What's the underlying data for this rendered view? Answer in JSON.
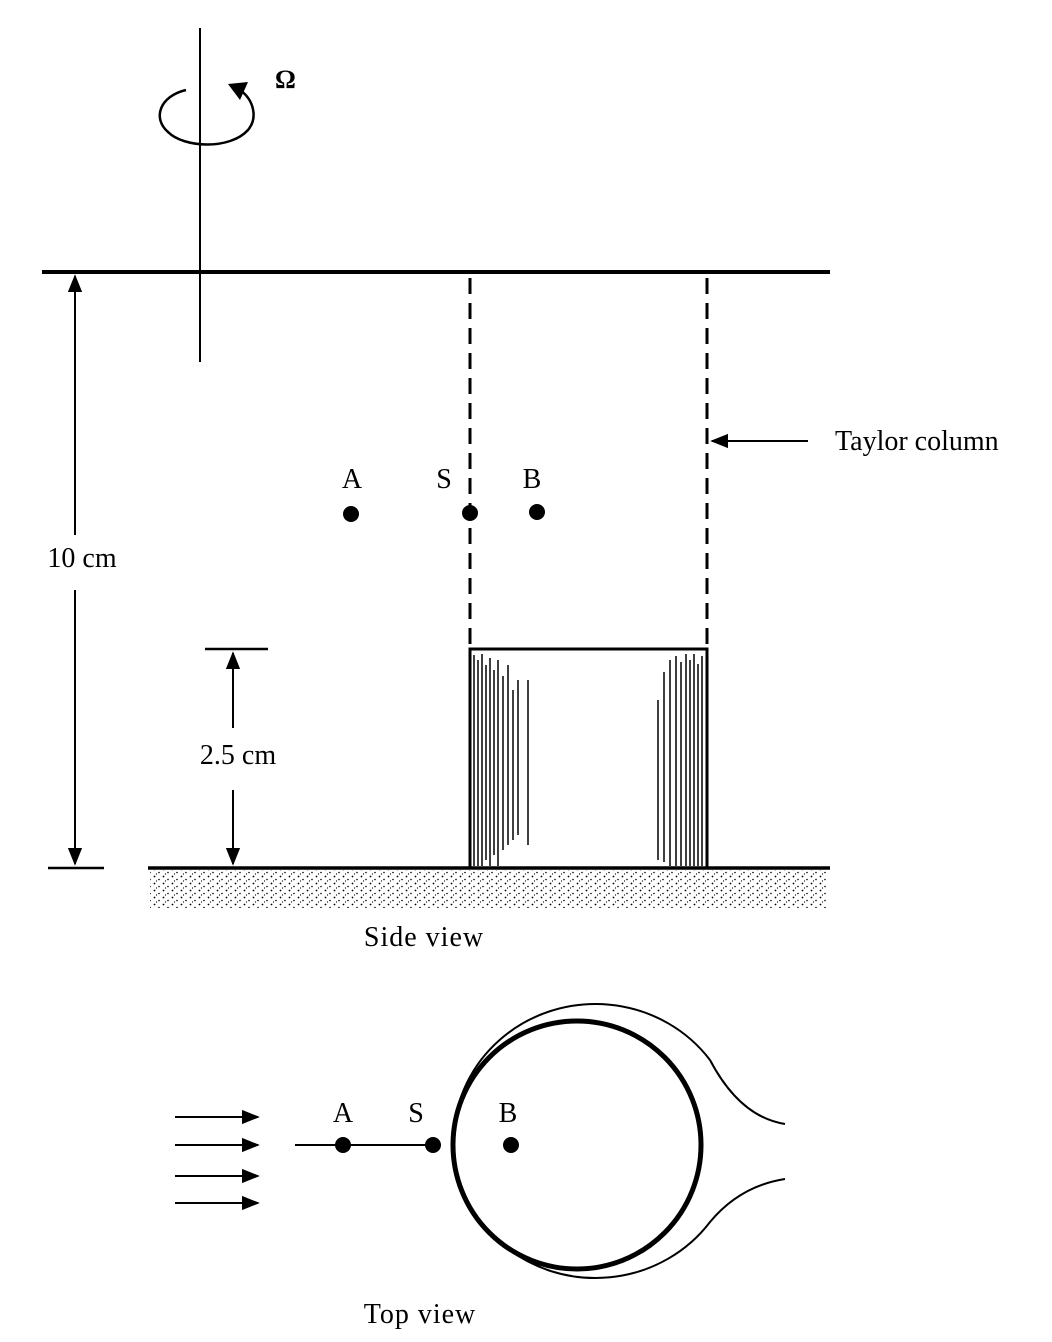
{
  "side_view": {
    "rotation_symbol": "Ω",
    "height_label": "10 cm",
    "obstacle_label": "2.5 cm",
    "column_label": "Taylor column",
    "point_a": "A",
    "point_s": "S",
    "point_b": "B",
    "caption": "Side view"
  },
  "top_view": {
    "point_a": "A",
    "point_s": "S",
    "point_b": "B",
    "caption": "Top view"
  }
}
